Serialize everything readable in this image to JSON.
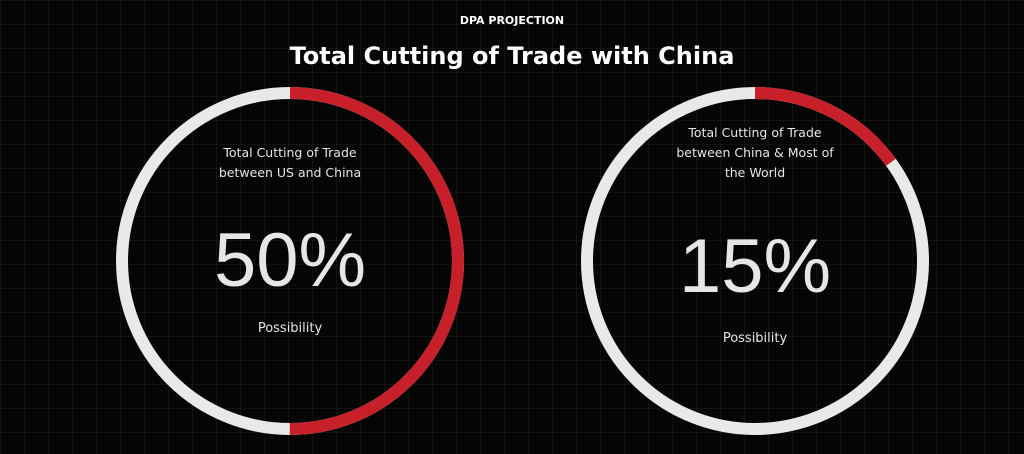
{
  "header": {
    "kicker": "DPA PROJECTION",
    "title": "Total Cutting of Trade with China"
  },
  "chart_data": [
    {
      "type": "donut",
      "label": "Total Cutting of Trade between US and China",
      "values": [
        50
      ],
      "value_labels": [
        "50%"
      ],
      "caption": "Possibility",
      "color": "#c8202b",
      "track_color": "#e9e9e9"
    },
    {
      "type": "donut",
      "label": "Total Cutting of Trade between China & Most of the World",
      "values": [
        15
      ],
      "value_labels": [
        "15%"
      ],
      "caption": "Possibility",
      "color": "#c8202b",
      "track_color": "#e9e9e9"
    }
  ]
}
